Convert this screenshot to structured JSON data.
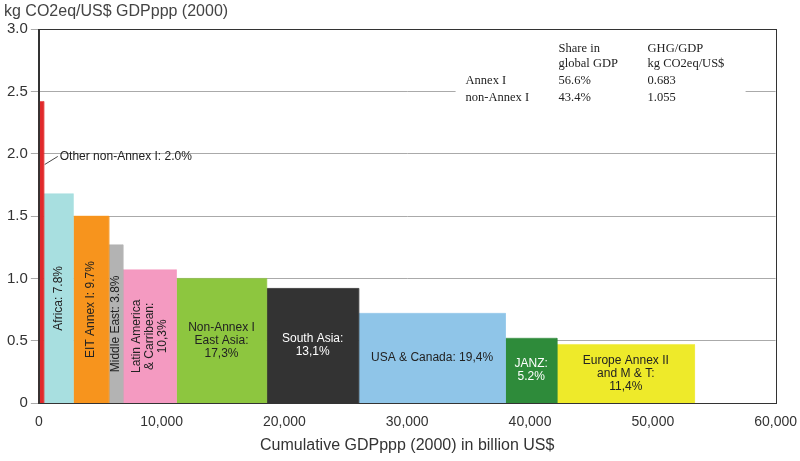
{
  "chart_data": {
    "type": "bar",
    "title": "kg CO2eq/US$ GDPppp (2000)",
    "x_label": "Cumulative GDPppp (2000) in billion US$",
    "categories": [
      "Other non-Annex I: 2.0%",
      "Africa: 7.8%",
      "EIT Annex I: 9.7%",
      "Middle East: 3.8%",
      "Latin America\n& Carribean:\n10,3%",
      "Non-Annex I\nEast Asia:\n17,3%",
      "South Asia:\n13,1%",
      "USA & Canada: 19,4%",
      "JANZ:\n5.2%",
      "Europe Annex II\nand M & T:\n11,4%"
    ],
    "widths": [
      400,
      2400,
      2900,
      1150,
      4350,
      7350,
      7500,
      11950,
      4200,
      11200
    ],
    "values": [
      2.42,
      1.68,
      1.5,
      1.27,
      1.07,
      1.0,
      0.92,
      0.72,
      0.52,
      0.47
    ],
    "colors": [
      "#e0292b",
      "#a8dfe0",
      "#f7941d",
      "#b3b3b3",
      "#f49ac1",
      "#8dc63f",
      "#333333",
      "#8fc5e8",
      "#2e8b3a",
      "#eeea2a"
    ],
    "xlim": [
      0,
      60000
    ],
    "xticks": [
      0,
      {
        "value": 10000,
        "label": "10,000"
      },
      {
        "value": 20000,
        "label": "20,000"
      },
      {
        "value": 30000,
        "label": "30,000"
      },
      {
        "value": 40000,
        "label": "40,000"
      },
      {
        "value": 50000,
        "label": "50,000"
      },
      {
        "value": 60000,
        "label": "60,000"
      }
    ],
    "ylim": [
      0,
      3
    ],
    "yticks": [
      0,
      0.5,
      {
        "value": 1,
        "label": "1.0"
      },
      1.5,
      {
        "value": 2,
        "label": "2.0"
      },
      2.5,
      {
        "value": 3,
        "label": "3.0"
      }
    ],
    "grid": "y",
    "table": {
      "columns": [
        "Share in\nglobal GDP",
        "GHG/GDP\nkg CO2eq/US$"
      ],
      "rows": [
        {
          "label": "Annex I",
          "values": [
            "56.6%",
            "0.683"
          ]
        },
        {
          "label": "non-Annex I",
          "values": [
            "43.4%",
            "1.055"
          ]
        }
      ]
    }
  }
}
